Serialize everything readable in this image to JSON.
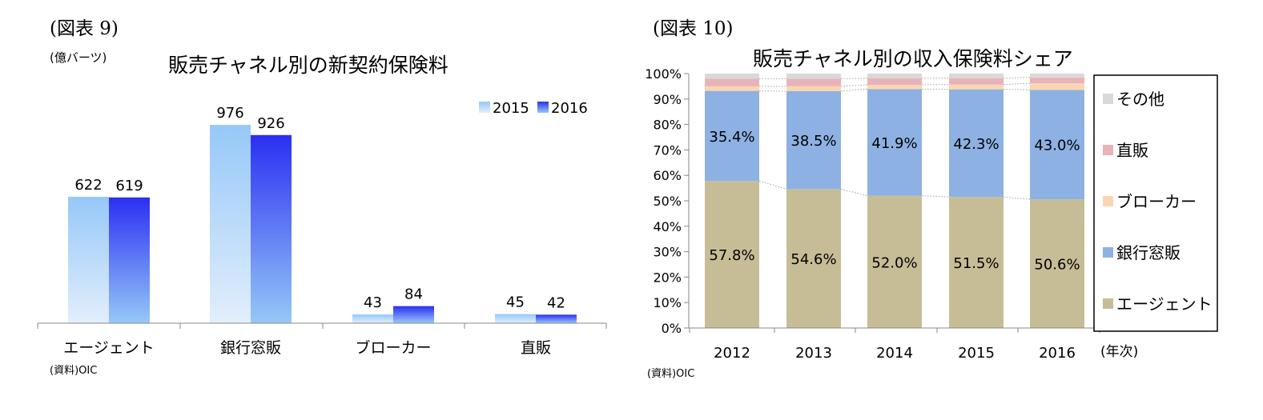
{
  "left": {
    "figure_label": "(図表 9)",
    "unit": "(億バーツ)",
    "source": "(資料)OIC"
  },
  "right": {
    "figure_label": "(図表 10)",
    "source": "(資料)OIC",
    "x_unit": "(年次)"
  },
  "colors": {
    "s2015_top": "#96c8f8",
    "s2015_bottom": "#e2eefc",
    "s2016_top": "#2b2ff2",
    "s2016_bottom": "#96c8f8",
    "agent": "#c6bd97",
    "bank": "#8db1e2",
    "broker": "#f9d6b2",
    "direct": "#e7b3b8",
    "other": "#d9d9d9"
  },
  "chart_data": [
    {
      "type": "bar",
      "title": "販売チャネル別の新契約保険料",
      "categories": [
        "エージェント",
        "銀行窓販",
        "ブローカー",
        "直販"
      ],
      "series": [
        {
          "name": "2015",
          "values": [
            622,
            976,
            43,
            45
          ]
        },
        {
          "name": "2016",
          "values": [
            619,
            926,
            84,
            42
          ]
        }
      ],
      "ylim": [
        0,
        1000
      ],
      "grid": false,
      "legend": "top-right"
    },
    {
      "type": "bar",
      "stacked": true,
      "title": "販売チャネル別の収入保険料シェア",
      "categories": [
        "2012",
        "2013",
        "2014",
        "2015",
        "2016"
      ],
      "ylim": [
        0,
        100
      ],
      "yticks": [
        "0%",
        "10%",
        "20%",
        "30%",
        "40%",
        "50%",
        "60%",
        "70%",
        "80%",
        "90%",
        "100%"
      ],
      "series": [
        {
          "name": "エージェント",
          "values": [
            57.8,
            54.6,
            52.0,
            51.5,
            50.6
          ],
          "labels": [
            "57.8%",
            "54.6%",
            "52.0%",
            "51.5%",
            "50.6%"
          ]
        },
        {
          "name": "銀行窓販",
          "values": [
            35.4,
            38.5,
            41.9,
            42.3,
            43.0
          ],
          "labels": [
            "35.4%",
            "38.5%",
            "41.9%",
            "42.3%",
            "43.0%"
          ]
        },
        {
          "name": "ブローカー",
          "values": [
            1.8,
            1.9,
            1.7,
            1.9,
            2.6
          ]
        },
        {
          "name": "直販",
          "values": [
            3.0,
            3.0,
            2.6,
            2.5,
            2.3
          ]
        },
        {
          "name": "その他",
          "values": [
            2.0,
            2.0,
            1.8,
            1.8,
            1.5
          ]
        }
      ],
      "legend": "right",
      "grid": false
    }
  ]
}
